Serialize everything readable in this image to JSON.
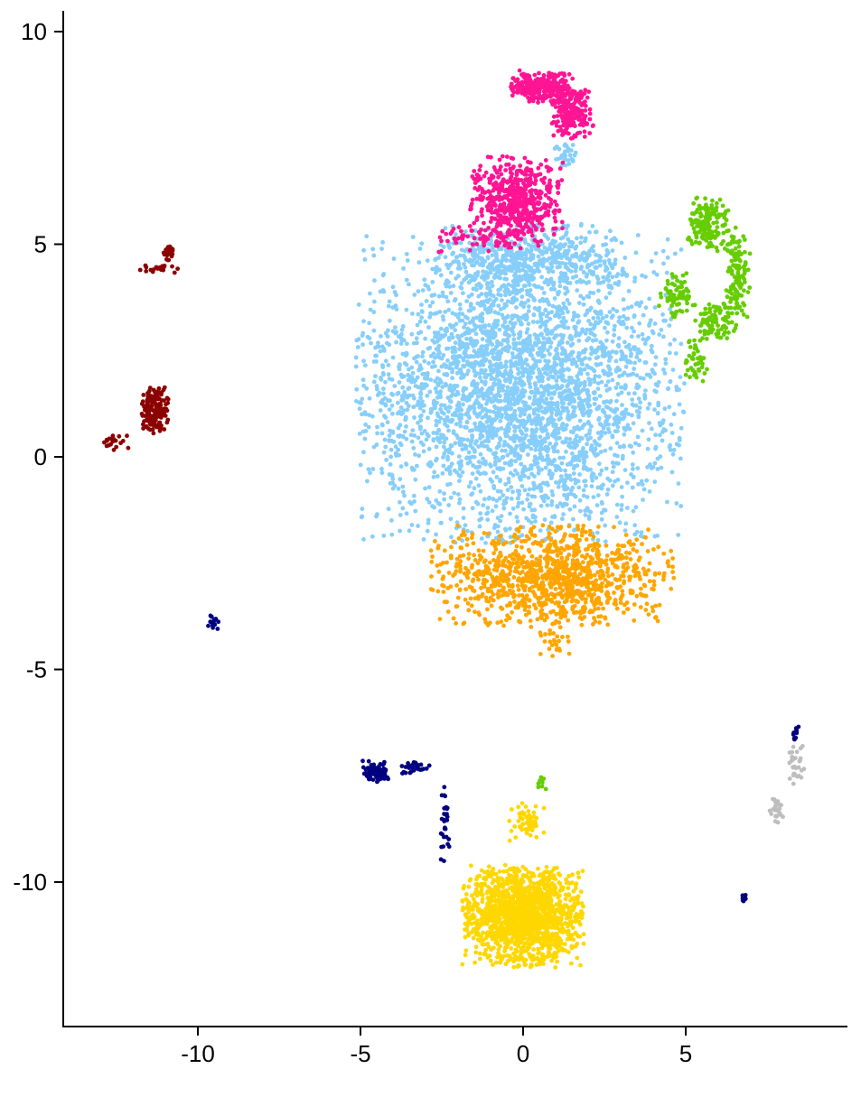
{
  "chart_data": {
    "type": "scatter",
    "title": "",
    "xlabel": "",
    "ylabel": "",
    "xlim": [
      -14.2,
      9.9
    ],
    "ylim": [
      -13.4,
      10.5
    ],
    "x_ticks": [
      -10,
      -5,
      0,
      5
    ],
    "y_ticks": [
      10,
      5,
      0,
      -5,
      -10
    ],
    "x_tick_labels": [
      "-10",
      "-5",
      "0",
      "5"
    ],
    "y_tick_labels": [
      "10",
      "5",
      "0",
      "-5",
      "-10"
    ],
    "grid": false,
    "legend": "none",
    "series": [
      {
        "color": "#87CEFA",
        "clusters": [
          {
            "cx": -0.1,
            "cy": 1.6,
            "sx": 4.6,
            "sy": 3.3,
            "n": 3400
          },
          {
            "cx": 0.2,
            "cy": 4.6,
            "sx": 2.6,
            "sy": 0.8,
            "n": 500
          },
          {
            "cx": 1.3,
            "cy": 7.1,
            "sx": 0.4,
            "sy": 0.3,
            "n": 30
          }
        ]
      },
      {
        "color": "#FFA500",
        "clusters": [
          {
            "cx": 0.9,
            "cy": -2.8,
            "sx": 3.4,
            "sy": 1.1,
            "n": 1100
          },
          {
            "cx": 1.0,
            "cy": -4.4,
            "sx": 0.5,
            "sy": 0.3,
            "n": 25
          }
        ]
      },
      {
        "color": "#FF1493",
        "clusters": [
          {
            "cx": -0.2,
            "cy": 6.0,
            "sx": 1.3,
            "sy": 1.0,
            "n": 600
          },
          {
            "cx": 0.6,
            "cy": 8.7,
            "sx": 0.9,
            "sy": 0.35,
            "n": 260
          },
          {
            "cx": 1.5,
            "cy": 8.1,
            "sx": 0.6,
            "sy": 0.6,
            "n": 200
          },
          {
            "cx": -1.6,
            "cy": 5.1,
            "sx": 1.0,
            "sy": 0.3,
            "n": 40
          }
        ]
      },
      {
        "color": "#66CD00",
        "clusters": [
          {
            "cx": 5.7,
            "cy": 5.5,
            "sx": 0.6,
            "sy": 0.6,
            "n": 160
          },
          {
            "cx": 6.6,
            "cy": 4.3,
            "sx": 0.35,
            "sy": 1.0,
            "n": 120
          },
          {
            "cx": 5.9,
            "cy": 3.2,
            "sx": 0.6,
            "sy": 0.4,
            "n": 90
          },
          {
            "cx": 4.7,
            "cy": 3.8,
            "sx": 0.5,
            "sy": 0.5,
            "n": 70
          },
          {
            "cx": 5.3,
            "cy": 2.3,
            "sx": 0.35,
            "sy": 0.6,
            "n": 50
          },
          {
            "cx": 0.6,
            "cy": -7.7,
            "sx": 0.15,
            "sy": 0.15,
            "n": 8
          }
        ]
      },
      {
        "color": "#FFD700",
        "clusters": [
          {
            "cx": 0.0,
            "cy": -10.8,
            "sx": 1.7,
            "sy": 1.1,
            "n": 1500
          },
          {
            "cx": 0.1,
            "cy": -8.6,
            "sx": 0.5,
            "sy": 0.45,
            "n": 60
          }
        ]
      },
      {
        "color": "#000080",
        "clusters": [
          {
            "cx": -4.5,
            "cy": -7.4,
            "sx": 0.4,
            "sy": 0.25,
            "n": 90
          },
          {
            "cx": -3.3,
            "cy": -7.3,
            "sx": 0.5,
            "sy": 0.15,
            "n": 30
          },
          {
            "cx": -2.4,
            "cy": -8.7,
            "sx": 0.15,
            "sy": 0.9,
            "n": 30
          },
          {
            "cx": -9.5,
            "cy": -3.9,
            "sx": 0.2,
            "sy": 0.18,
            "n": 15
          },
          {
            "cx": 6.8,
            "cy": -10.4,
            "sx": 0.06,
            "sy": 0.1,
            "n": 12
          },
          {
            "cx": 8.4,
            "cy": -6.5,
            "sx": 0.1,
            "sy": 0.15,
            "n": 12
          }
        ]
      },
      {
        "color": "#8B0000",
        "clusters": [
          {
            "cx": -11.3,
            "cy": 1.1,
            "sx": 0.4,
            "sy": 0.5,
            "n": 180
          },
          {
            "cx": -12.5,
            "cy": 0.35,
            "sx": 0.4,
            "sy": 0.18,
            "n": 20
          },
          {
            "cx": -10.9,
            "cy": 4.8,
            "sx": 0.15,
            "sy": 0.2,
            "n": 30
          },
          {
            "cx": -11.2,
            "cy": 4.4,
            "sx": 0.7,
            "sy": 0.1,
            "n": 20
          }
        ]
      },
      {
        "color": "#BEBEBE",
        "clusters": [
          {
            "cx": 8.4,
            "cy": -7.3,
            "sx": 0.25,
            "sy": 0.5,
            "n": 30
          },
          {
            "cx": 7.8,
            "cy": -8.3,
            "sx": 0.2,
            "sy": 0.3,
            "n": 25
          }
        ]
      }
    ]
  }
}
